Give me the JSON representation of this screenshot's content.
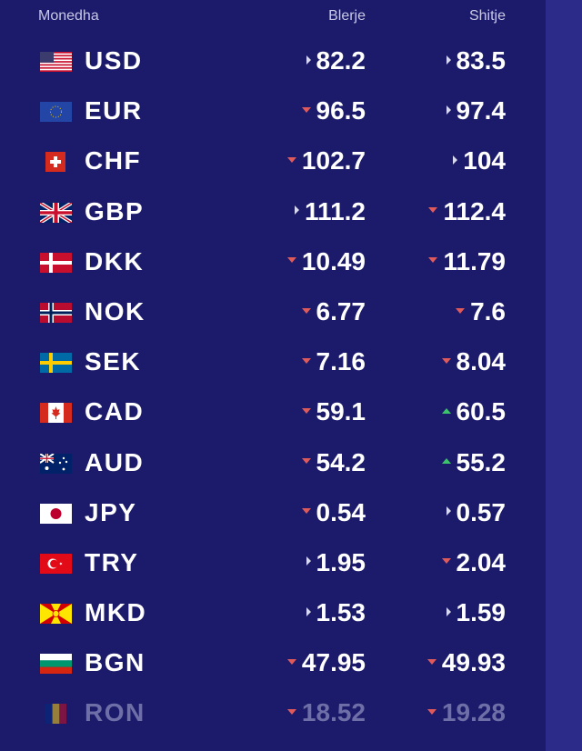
{
  "header": {
    "currency": "Monedha",
    "buy": "Blerje",
    "sell": "Shitje"
  },
  "colors": {
    "background": "#1b1a6b",
    "down": "#e05a5a",
    "up": "#3cc46a",
    "neutral": "#d8d8ee"
  },
  "rates": [
    {
      "code": "USD",
      "flag": "usa-flag-icon",
      "buy": "82.2",
      "buy_trend": "neutral",
      "sell": "83.5",
      "sell_trend": "neutral"
    },
    {
      "code": "EUR",
      "flag": "eu-flag-icon",
      "buy": "96.5",
      "buy_trend": "down",
      "sell": "97.4",
      "sell_trend": "neutral"
    },
    {
      "code": "CHF",
      "flag": "switzerland-flag-icon",
      "buy": "102.7",
      "buy_trend": "down",
      "sell": "104",
      "sell_trend": "neutral"
    },
    {
      "code": "GBP",
      "flag": "uk-flag-icon",
      "buy": "111.2",
      "buy_trend": "neutral",
      "sell": "112.4",
      "sell_trend": "down"
    },
    {
      "code": "DKK",
      "flag": "denmark-flag-icon",
      "buy": "10.49",
      "buy_trend": "down",
      "sell": "11.79",
      "sell_trend": "down"
    },
    {
      "code": "NOK",
      "flag": "norway-flag-icon",
      "buy": "6.77",
      "buy_trend": "down",
      "sell": "7.6",
      "sell_trend": "down"
    },
    {
      "code": "SEK",
      "flag": "sweden-flag-icon",
      "buy": "7.16",
      "buy_trend": "down",
      "sell": "8.04",
      "sell_trend": "down"
    },
    {
      "code": "CAD",
      "flag": "canada-flag-icon",
      "buy": "59.1",
      "buy_trend": "down",
      "sell": "60.5",
      "sell_trend": "up"
    },
    {
      "code": "AUD",
      "flag": "australia-flag-icon",
      "buy": "54.2",
      "buy_trend": "down",
      "sell": "55.2",
      "sell_trend": "up"
    },
    {
      "code": "JPY",
      "flag": "japan-flag-icon",
      "buy": "0.54",
      "buy_trend": "down",
      "sell": "0.57",
      "sell_trend": "neutral"
    },
    {
      "code": "TRY",
      "flag": "turkey-flag-icon",
      "buy": "1.95",
      "buy_trend": "neutral",
      "sell": "2.04",
      "sell_trend": "down"
    },
    {
      "code": "MKD",
      "flag": "north-macedonia-flag-icon",
      "buy": "1.53",
      "buy_trend": "neutral",
      "sell": "1.59",
      "sell_trend": "neutral"
    },
    {
      "code": "BGN",
      "flag": "bulgaria-flag-icon",
      "buy": "47.95",
      "buy_trend": "down",
      "sell": "49.93",
      "sell_trend": "down"
    },
    {
      "code": "RON",
      "flag": "romania-flag-icon",
      "buy": "18.52",
      "buy_trend": "down",
      "sell": "19.28",
      "sell_trend": "down"
    }
  ]
}
